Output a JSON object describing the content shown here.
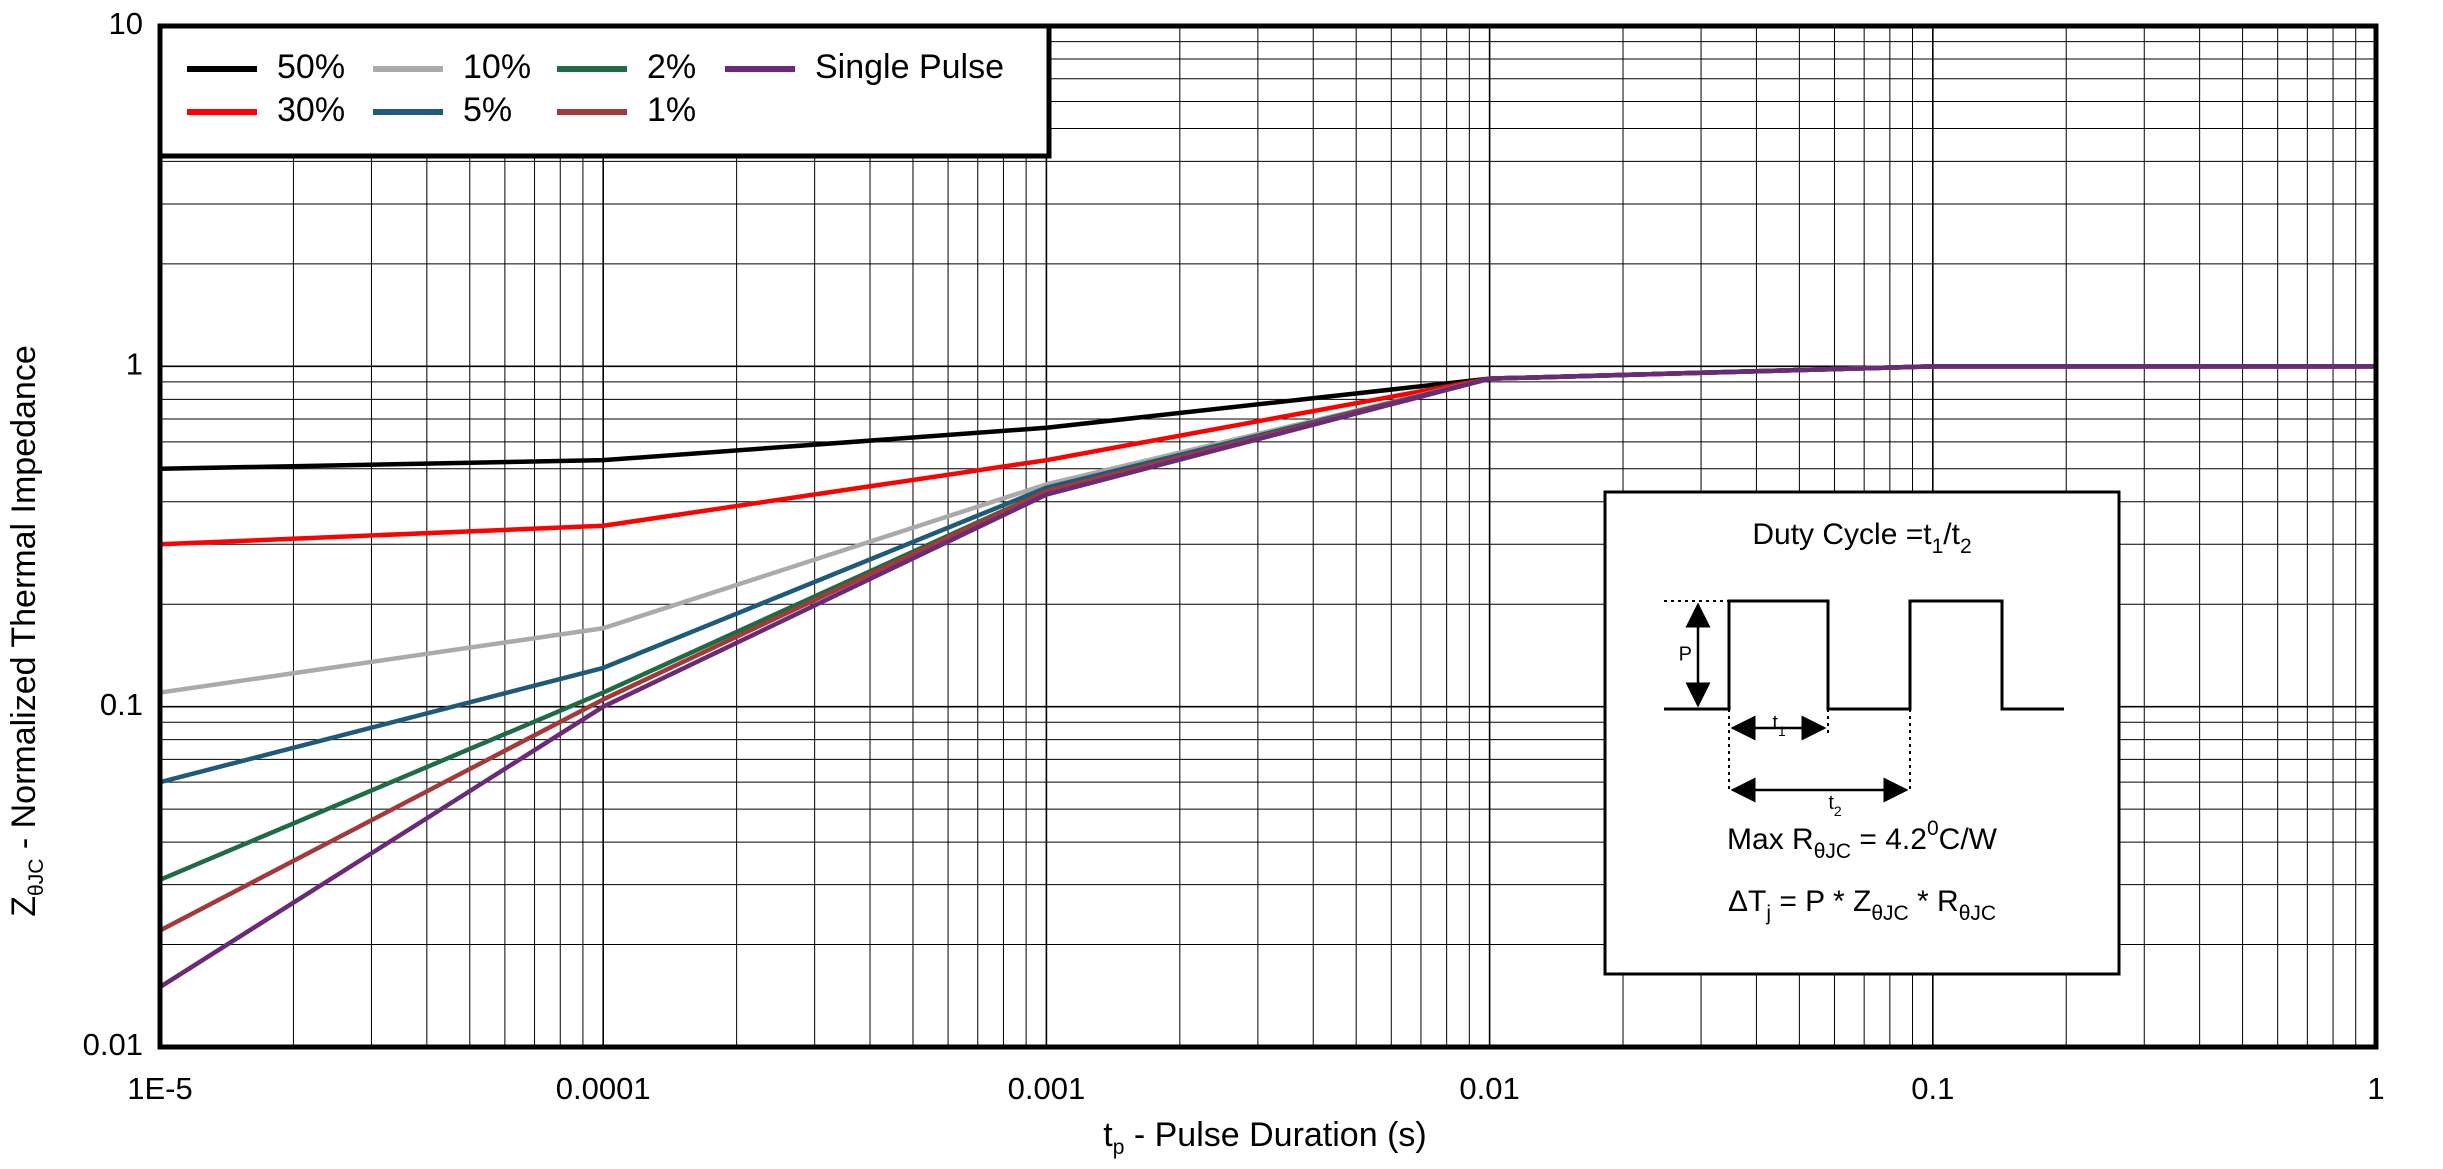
{
  "chart_data": {
    "type": "line",
    "x_label": [
      "t",
      "p",
      " - Pulse Duration (s)"
    ],
    "y_label": [
      "Z",
      "θJC",
      " - Normalized Thermal Impedance"
    ],
    "x": [
      1e-05,
      0.0001,
      0.001,
      0.01,
      0.1,
      1
    ],
    "series": [
      {
        "name": "50%",
        "color": "#000000",
        "values": [
          0.5,
          0.53,
          0.66,
          0.92,
          1.0,
          1.0
        ]
      },
      {
        "name": "30%",
        "color": "#ff0000",
        "values": [
          0.3,
          0.34,
          0.53,
          0.92,
          1.0,
          1.0
        ]
      },
      {
        "name": "10%",
        "color": "#aaaaaa",
        "values": [
          0.11,
          0.17,
          0.45,
          0.92,
          1.0,
          1.0
        ]
      },
      {
        "name": "5%",
        "color": "#1f5a7a",
        "values": [
          0.06,
          0.13,
          0.44,
          0.92,
          1.0,
          1.0
        ]
      },
      {
        "name": "2%",
        "color": "#1e6b44",
        "values": [
          0.031,
          0.11,
          0.43,
          0.92,
          1.0,
          1.0
        ]
      },
      {
        "name": "1%",
        "color": "#a33a3a",
        "values": [
          0.022,
          0.105,
          0.43,
          0.92,
          1.0,
          1.0
        ]
      },
      {
        "name": "Single Pulse",
        "color": "#6a2a78",
        "values": [
          0.015,
          0.1,
          0.42,
          0.92,
          1.0,
          1.0
        ]
      }
    ],
    "xlim": [
      1e-05,
      1
    ],
    "ylim": [
      0.01,
      10
    ],
    "xticks": [
      {
        "value": 1e-05,
        "label": "1E-5"
      },
      0.0001,
      0.001,
      0.01,
      0.1,
      1
    ],
    "yticks": [
      0.01,
      0.1,
      1,
      10
    ],
    "log_x": true,
    "log_y": true,
    "grid": true,
    "minor_grid": true,
    "legend": "upper left",
    "inset": {
      "title": [
        "Duty Cycle =t",
        "1",
        "/t",
        "2"
      ],
      "p_label": "P",
      "t1_label": [
        "t",
        "1"
      ],
      "t2_label": [
        "t",
        "2"
      ],
      "max_r": [
        "Max R",
        "θJC",
        " = 4.2",
        "0",
        "C/W"
      ],
      "delta_t": [
        "ΔT",
        "j",
        " = P * Z",
        "θJC",
        " * R",
        "θJC"
      ]
    }
  }
}
